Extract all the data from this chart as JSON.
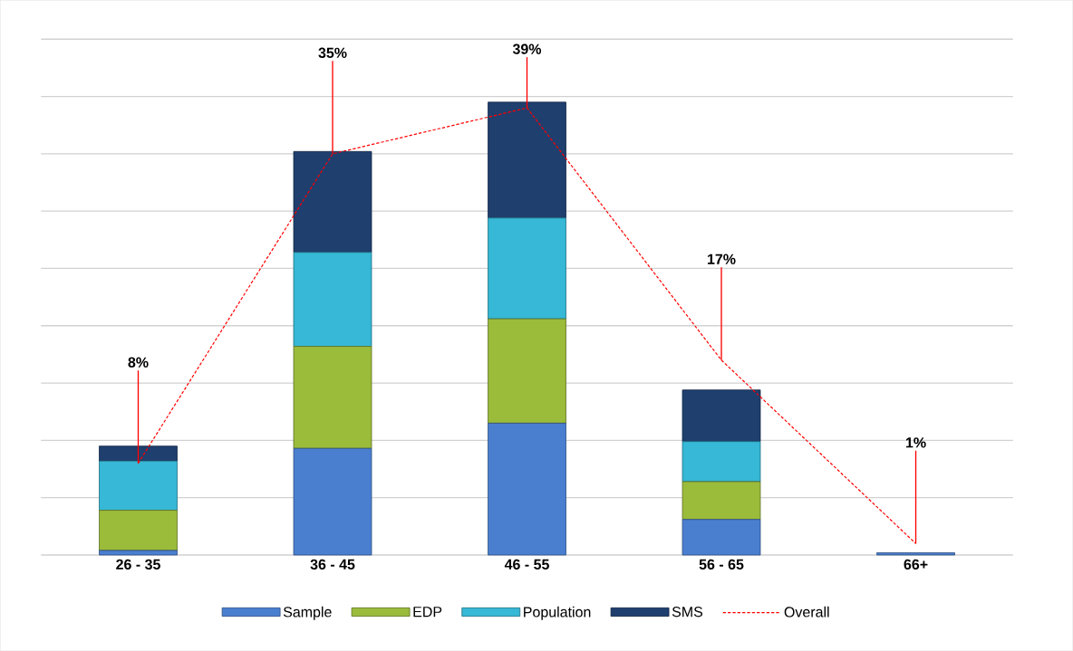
{
  "chart_data": {
    "type": "bar",
    "stacked": true,
    "categories": [
      "26 - 35",
      "36 - 45",
      "46 - 55",
      "56 - 65",
      "66+"
    ],
    "series": [
      {
        "name": "Sample",
        "color": "#4a7fd0",
        "values": [
          0.4,
          9.3,
          11.5,
          3.1,
          0.2
        ]
      },
      {
        "name": "EDP",
        "color": "#9bbb3b",
        "values": [
          3.5,
          8.9,
          9.1,
          3.3,
          0
        ]
      },
      {
        "name": "Population",
        "color": "#36b8d6",
        "values": [
          4.3,
          8.2,
          8.8,
          3.5,
          0
        ]
      },
      {
        "name": "SMS",
        "color": "#1f3f6e",
        "values": [
          1.3,
          8.8,
          10.1,
          4.5,
          0
        ]
      },
      {
        "name": "Overall",
        "type": "line",
        "color": "#ff0000",
        "line_style": "dashed",
        "marker": "none",
        "values": [
          8,
          35,
          39,
          17,
          1
        ],
        "value_labels": [
          "8%",
          "35%",
          "39%",
          "17%",
          "1%"
        ]
      }
    ],
    "ylim": [
      0,
      45
    ],
    "yticks": [
      {
        "value": 0,
        "label": null
      },
      {
        "value": 5,
        "label": null
      },
      {
        "value": 10,
        "label": null
      },
      {
        "value": 15,
        "label": null
      },
      {
        "value": 20,
        "label": null
      },
      {
        "value": 25,
        "label": null
      },
      {
        "value": 30,
        "label": null
      },
      {
        "value": 35,
        "label": null
      },
      {
        "value": 40,
        "label": null
      },
      {
        "value": 45,
        "label": null
      }
    ],
    "tick_labels": "x",
    "grid": "y",
    "legend": "bottom"
  }
}
